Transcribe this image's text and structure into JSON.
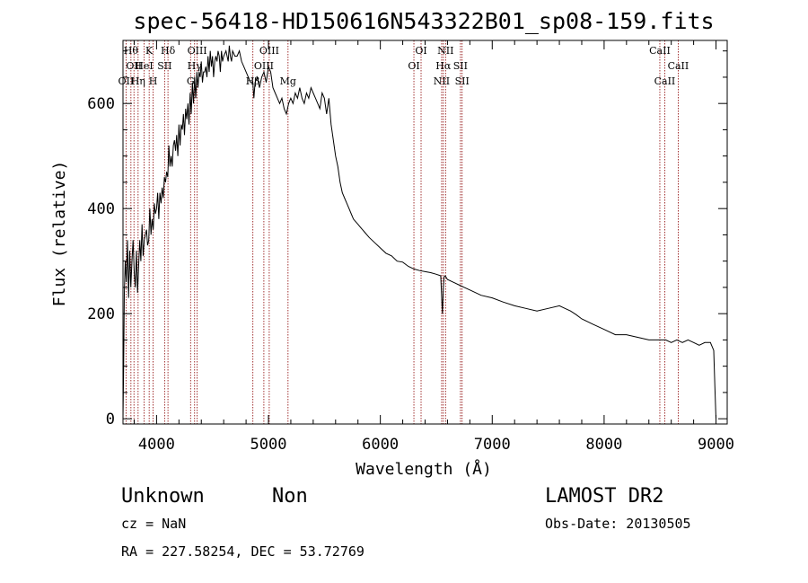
{
  "chart_data": {
    "type": "line",
    "title": "spec-56418-HD150616N543322B01_sp08-159.fits",
    "xlabel": "Wavelength (Å)",
    "ylabel": "Flux (relative)",
    "xlim": [
      3700,
      9100
    ],
    "ylim": [
      -10,
      720
    ],
    "xticks": [
      4000,
      5000,
      6000,
      7000,
      8000,
      9000
    ],
    "yticks": [
      0,
      200,
      400,
      600
    ],
    "grid": false,
    "line_color": "#000000",
    "marker_color": "#8b0000",
    "series": [
      {
        "x": [
          3700,
          3705,
          3712,
          3720,
          3730,
          3740,
          3750,
          3760,
          3770,
          3780,
          3790,
          3800,
          3810,
          3820,
          3830,
          3840,
          3850,
          3860,
          3870,
          3880,
          3890,
          3900,
          3910,
          3920,
          3930,
          3940,
          3950,
          3960,
          3970,
          3980,
          3990,
          4000,
          4010,
          4020,
          4030,
          4040,
          4050,
          4060,
          4070,
          4080,
          4090,
          4100,
          4110,
          4120,
          4130,
          4140,
          4150,
          4160,
          4170,
          4180,
          4190,
          4200,
          4210,
          4220,
          4230,
          4240,
          4250,
          4260,
          4270,
          4280,
          4290,
          4300,
          4310,
          4320,
          4330,
          4340,
          4350,
          4360,
          4370,
          4380,
          4390,
          4400,
          4410,
          4420,
          4430,
          4440,
          4450,
          4460,
          4470,
          4480,
          4490,
          4500,
          4510,
          4520,
          4530,
          4540,
          4550,
          4560,
          4570,
          4580,
          4590,
          4600,
          4620,
          4640,
          4650,
          4660,
          4670,
          4680,
          4700,
          4720,
          4740,
          4760,
          4780,
          4800,
          4820,
          4840,
          4860,
          4870,
          4880,
          4900,
          4920,
          4940,
          4960,
          4980,
          5000,
          5020,
          5040,
          5060,
          5080,
          5100,
          5120,
          5140,
          5160,
          5180,
          5200,
          5220,
          5240,
          5260,
          5280,
          5300,
          5320,
          5340,
          5360,
          5380,
          5400,
          5420,
          5440,
          5460,
          5480,
          5500,
          5520,
          5540,
          5560,
          5580,
          5600,
          5620,
          5640,
          5660,
          5680,
          5700,
          5720,
          5740,
          5760,
          5780,
          5800,
          5820,
          5840,
          5860,
          5880,
          5900,
          5950,
          6000,
          6050,
          6100,
          6150,
          6200,
          6250,
          6300,
          6350,
          6400,
          6450,
          6500,
          6540,
          6555,
          6563,
          6570,
          6580,
          6600,
          6650,
          6700,
          6750,
          6800,
          6900,
          7000,
          7100,
          7200,
          7300,
          7400,
          7500,
          7600,
          7650,
          7700,
          7750,
          7800,
          7900,
          8000,
          8100,
          8200,
          8300,
          8400,
          8500,
          8550,
          8600,
          8650,
          8700,
          8750,
          8800,
          8850,
          8900,
          8950,
          8980,
          8990,
          9000
        ],
        "values": [
          0,
          80,
          240,
          300,
          260,
          340,
          230,
          320,
          250,
          300,
          340,
          280,
          250,
          320,
          240,
          290,
          340,
          300,
          370,
          310,
          340,
          350,
          360,
          330,
          340,
          400,
          350,
          380,
          360,
          410,
          390,
          400,
          430,
          380,
          430,
          410,
          440,
          420,
          460,
          450,
          470,
          460,
          520,
          480,
          500,
          480,
          520,
          530,
          510,
          540,
          500,
          560,
          520,
          560,
          550,
          580,
          540,
          590,
          570,
          600,
          560,
          620,
          580,
          640,
          600,
          650,
          610,
          660,
          630,
          660,
          650,
          680,
          640,
          660,
          660,
          670,
          650,
          690,
          660,
          700,
          670,
          690,
          650,
          680,
          690,
          680,
          700,
          690,
          660,
          700,
          680,
          690,
          700,
          680,
          710,
          690,
          680,
          700,
          690,
          690,
          700,
          680,
          670,
          660,
          650,
          640,
          640,
          610,
          640,
          650,
          630,
          650,
          660,
          640,
          670,
          660,
          630,
          620,
          610,
          600,
          610,
          590,
          580,
          600,
          610,
          600,
          620,
          610,
          630,
          610,
          600,
          620,
          610,
          630,
          620,
          610,
          600,
          590,
          620,
          610,
          580,
          610,
          560,
          530,
          500,
          480,
          450,
          430,
          420,
          410,
          400,
          390,
          380,
          375,
          370,
          365,
          360,
          355,
          350,
          345,
          335,
          325,
          315,
          310,
          300,
          298,
          290,
          285,
          282,
          280,
          278,
          275,
          272,
          200,
          250,
          270,
          272,
          265,
          260,
          255,
          250,
          245,
          235,
          230,
          222,
          215,
          210,
          205,
          210,
          215,
          210,
          205,
          198,
          190,
          180,
          170,
          160,
          160,
          155,
          150,
          150,
          150,
          145,
          150,
          145,
          150,
          145,
          140,
          145,
          145,
          130,
          60,
          0
        ]
      }
    ],
    "lines": [
      {
        "wl": 3727,
        "label": "OII",
        "row": 3
      },
      {
        "wl": 3771,
        "label": "Hθ",
        "row": 1
      },
      {
        "wl": 3798,
        "label": "OII",
        "row": 2
      },
      {
        "wl": 3835,
        "label": "Hη",
        "row": 3
      },
      {
        "wl": 3889,
        "label": "HeI",
        "row": 2
      },
      {
        "wl": 3934,
        "label": "K",
        "row": 1
      },
      {
        "wl": 3969,
        "label": "H",
        "row": 3
      },
      {
        "wl": 4072,
        "label": "SII",
        "row": 2
      },
      {
        "wl": 4102,
        "label": "Hδ",
        "row": 1
      },
      {
        "wl": 4304,
        "label": "G",
        "row": 3
      },
      {
        "wl": 4340,
        "label": "Hγ",
        "row": 2
      },
      {
        "wl": 4363,
        "label": "OIII",
        "row": 1
      },
      {
        "wl": 4861,
        "label": "Hβ",
        "row": 3
      },
      {
        "wl": 4959,
        "label": "OIII",
        "row": 2
      },
      {
        "wl": 5007,
        "label": "OIII",
        "row": 1
      },
      {
        "wl": 5175,
        "label": "Mg",
        "row": 3
      },
      {
        "wl": 6300,
        "label": "OI",
        "row": 2
      },
      {
        "wl": 6364,
        "label": "OI",
        "row": 1
      },
      {
        "wl": 6548,
        "label": "NII",
        "row": 3
      },
      {
        "wl": 6563,
        "label": "Hα",
        "row": 2
      },
      {
        "wl": 6583,
        "label": "NII",
        "row": 1
      },
      {
        "wl": 6716,
        "label": "SII",
        "row": 2
      },
      {
        "wl": 6731,
        "label": "SII",
        "row": 3
      },
      {
        "wl": 8498,
        "label": "CaII",
        "row": 1
      },
      {
        "wl": 8542,
        "label": "CaII",
        "row": 3
      },
      {
        "wl": 8662,
        "label": "CaII",
        "row": 2
      }
    ]
  },
  "footer": {
    "class_label": "Unknown",
    "subclass_label": "Non",
    "survey": "LAMOST DR2",
    "cz": "cz = NaN",
    "obs_date": "Obs-Date: 20130505",
    "coords": "RA = 227.58254, DEC =  53.72769"
  }
}
